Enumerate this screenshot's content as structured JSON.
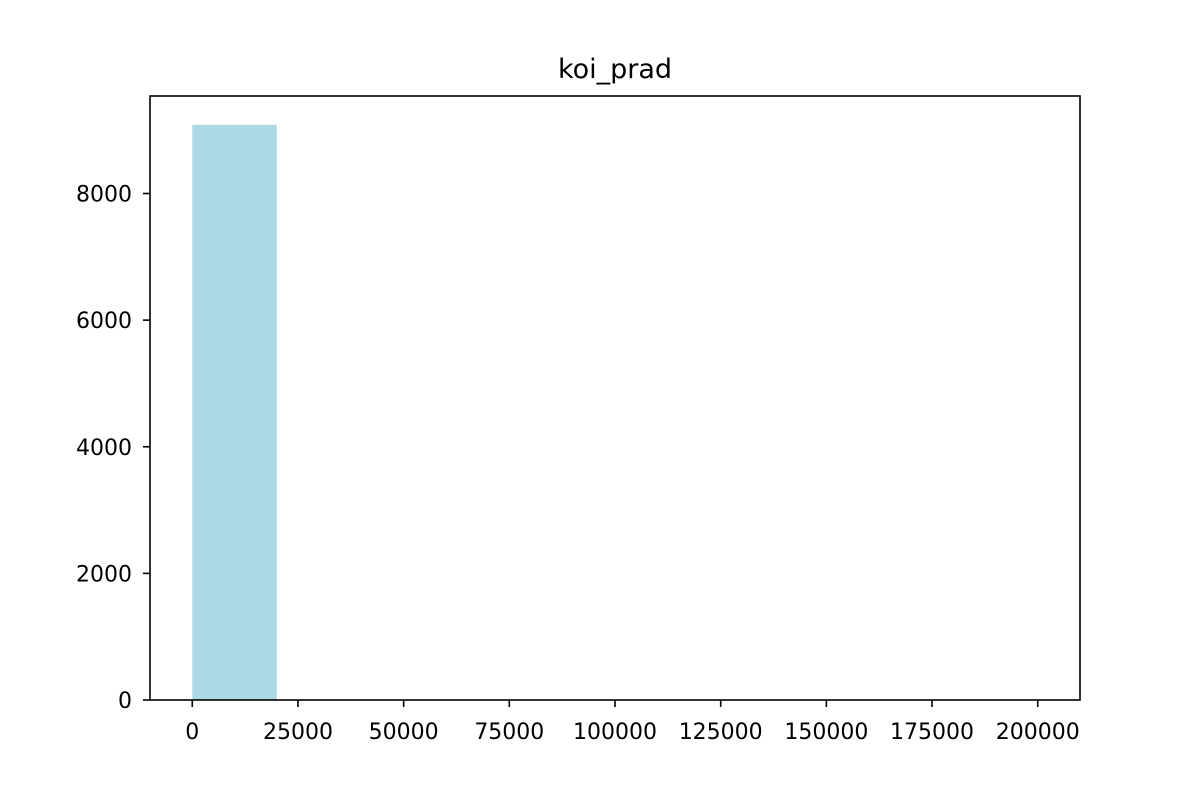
{
  "chart_data": {
    "type": "bar",
    "title": "koi_prad",
    "xlabel": "",
    "ylabel": "",
    "bins": [
      {
        "x0": 0,
        "x1": 20000,
        "count": 9085
      },
      {
        "x0": 20000,
        "x1": 40000,
        "count": 0
      },
      {
        "x0": 40000,
        "x1": 60000,
        "count": 0
      },
      {
        "x0": 60000,
        "x1": 80000,
        "count": 0
      },
      {
        "x0": 80000,
        "x1": 100000,
        "count": 0
      },
      {
        "x0": 100000,
        "x1": 120000,
        "count": 0
      },
      {
        "x0": 120000,
        "x1": 140000,
        "count": 0
      },
      {
        "x0": 140000,
        "x1": 160000,
        "count": 0
      },
      {
        "x0": 160000,
        "x1": 180000,
        "count": 0
      },
      {
        "x0": 180000,
        "x1": 200000,
        "count": 1
      }
    ],
    "xlim": [
      -10000,
      210000
    ],
    "ylim": [
      0,
      9540
    ],
    "xticks": [
      0,
      25000,
      50000,
      75000,
      100000,
      125000,
      150000,
      175000,
      200000
    ],
    "xtick_labels": [
      "0",
      "25000",
      "50000",
      "75000",
      "100000",
      "125000",
      "150000",
      "175000",
      "200000"
    ],
    "yticks": [
      0,
      2000,
      4000,
      6000,
      8000
    ],
    "ytick_labels": [
      "0",
      "2000",
      "4000",
      "6000",
      "8000"
    ],
    "bar_color": "#add8e6",
    "grid": false,
    "legend": "none"
  }
}
